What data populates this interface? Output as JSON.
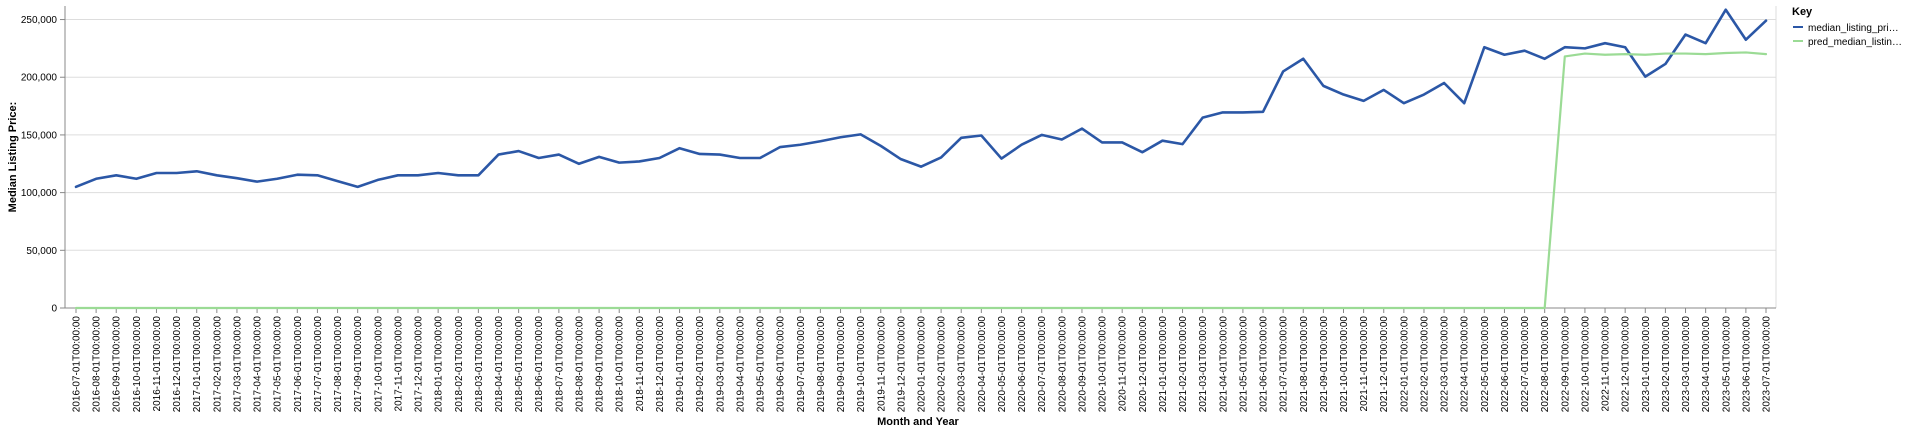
{
  "chart_data": {
    "type": "line",
    "xlabel": "Month and Year",
    "ylabel": "Median Listing Price:",
    "ylim": [
      0,
      260000
    ],
    "yticks": [
      "0",
      "50,000",
      "100,000",
      "150,000",
      "200,000",
      "250,000"
    ],
    "grid": true,
    "legend": {
      "title": "Key",
      "placement": "top-right",
      "entries": [
        "median_listing_pri…",
        "pred_median_listin…"
      ]
    },
    "colors": {
      "actual": "#2b57a6",
      "pred": "#9bdb95"
    },
    "x": [
      "2016-07-01T00:00:00",
      "2016-08-01T00:00:00",
      "2016-09-01T00:00:00",
      "2016-10-01T00:00:00",
      "2016-11-01T00:00:00",
      "2016-12-01T00:00:00",
      "2017-01-01T00:00:00",
      "2017-02-01T00:00:00",
      "2017-03-01T00:00:00",
      "2017-04-01T00:00:00",
      "2017-05-01T00:00:00",
      "2017-06-01T00:00:00",
      "2017-07-01T00:00:00",
      "2017-08-01T00:00:00",
      "2017-09-01T00:00:00",
      "2017-10-01T00:00:00",
      "2017-11-01T00:00:00",
      "2017-12-01T00:00:00",
      "2018-01-01T00:00:00",
      "2018-02-01T00:00:00",
      "2018-03-01T00:00:00",
      "2018-04-01T00:00:00",
      "2018-05-01T00:00:00",
      "2018-06-01T00:00:00",
      "2018-07-01T00:00:00",
      "2018-08-01T00:00:00",
      "2018-09-01T00:00:00",
      "2018-10-01T00:00:00",
      "2018-11-01T00:00:00",
      "2018-12-01T00:00:00",
      "2019-01-01T00:00:00",
      "2019-02-01T00:00:00",
      "2019-03-01T00:00:00",
      "2019-04-01T00:00:00",
      "2019-05-01T00:00:00",
      "2019-06-01T00:00:00",
      "2019-07-01T00:00:00",
      "2019-08-01T00:00:00",
      "2019-09-01T00:00:00",
      "2019-10-01T00:00:00",
      "2019-11-01T00:00:00",
      "2019-12-01T00:00:00",
      "2020-01-01T00:00:00",
      "2020-02-01T00:00:00",
      "2020-03-01T00:00:00",
      "2020-04-01T00:00:00",
      "2020-05-01T00:00:00",
      "2020-06-01T00:00:00",
      "2020-07-01T00:00:00",
      "2020-08-01T00:00:00",
      "2020-09-01T00:00:00",
      "2020-10-01T00:00:00",
      "2020-11-01T00:00:00",
      "2020-12-01T00:00:00",
      "2021-01-01T00:00:00",
      "2021-02-01T00:00:00",
      "2021-03-01T00:00:00",
      "2021-04-01T00:00:00",
      "2021-05-01T00:00:00",
      "2021-06-01T00:00:00",
      "2021-07-01T00:00:00",
      "2021-08-01T00:00:00",
      "2021-09-01T00:00:00",
      "2021-10-01T00:00:00",
      "2021-11-01T00:00:00",
      "2021-12-01T00:00:00",
      "2022-01-01T00:00:00",
      "2022-02-01T00:00:00",
      "2022-03-01T00:00:00",
      "2022-04-01T00:00:00",
      "2022-05-01T00:00:00",
      "2022-06-01T00:00:00",
      "2022-07-01T00:00:00",
      "2022-08-01T00:00:00",
      "2022-09-01T00:00:00",
      "2022-10-01T00:00:00",
      "2022-11-01T00:00:00",
      "2022-12-01T00:00:00",
      "2023-01-01T00:00:00",
      "2023-02-01T00:00:00",
      "2023-03-01T00:00:00",
      "2023-04-01T00:00:00",
      "2023-05-01T00:00:00",
      "2023-06-01T00:00:00",
      "2023-07-01T00:00:00"
    ],
    "series": [
      {
        "name": "median_listing_pri…",
        "values": [
          105000,
          112000,
          115000,
          112000,
          117000,
          117000,
          118500,
          115000,
          112500,
          109500,
          112000,
          115500,
          115000,
          110000,
          105000,
          111000,
          115000,
          115000,
          117000,
          115000,
          115000,
          133000,
          136000,
          130000,
          133000,
          125000,
          131000,
          126000,
          127000,
          130000,
          138500,
          133500,
          133000,
          130000,
          130000,
          139500,
          141500,
          144500,
          148000,
          150500,
          140500,
          129000,
          122500,
          130500,
          147500,
          149500,
          129500,
          141500,
          150000,
          146000,
          155500,
          143500,
          143500,
          135000,
          145000,
          142000,
          165000,
          169500,
          169500,
          170000,
          205000,
          216000,
          192500,
          185000,
          179500,
          189000,
          177500,
          185000,
          195000,
          177500,
          226000,
          219500,
          223000,
          216000,
          226000,
          225000,
          229500,
          226000,
          200500,
          211500,
          237000,
          229500,
          258500,
          232500,
          249000
        ]
      },
      {
        "name": "pred_median_listin…",
        "values": [
          0,
          0,
          0,
          0,
          0,
          0,
          0,
          0,
          0,
          0,
          0,
          0,
          0,
          0,
          0,
          0,
          0,
          0,
          0,
          0,
          0,
          0,
          0,
          0,
          0,
          0,
          0,
          0,
          0,
          0,
          0,
          0,
          0,
          0,
          0,
          0,
          0,
          0,
          0,
          0,
          0,
          0,
          0,
          0,
          0,
          0,
          0,
          0,
          0,
          0,
          0,
          0,
          0,
          0,
          0,
          0,
          0,
          0,
          0,
          0,
          0,
          0,
          0,
          0,
          0,
          0,
          0,
          0,
          0,
          0,
          0,
          0,
          0,
          0,
          218000,
          220500,
          219500,
          220000,
          219500,
          220500,
          220500,
          220000,
          221000,
          221500,
          220000
        ]
      }
    ]
  }
}
